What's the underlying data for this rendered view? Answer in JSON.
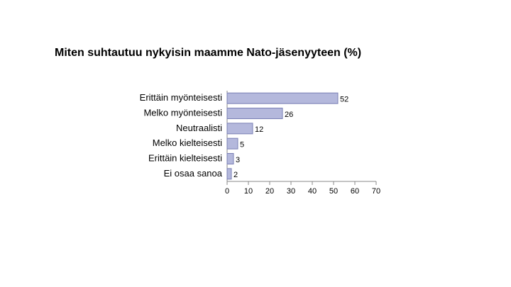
{
  "chart_data": {
    "type": "bar",
    "orientation": "horizontal",
    "title": "Miten suhtautuu nykyisin maamme Nato-jäsenyyteen (%)",
    "categories": [
      "Erittäin myönteisesti",
      "Melko myönteisesti",
      "Neutraalisti",
      "Melko kielteisesti",
      "Erittäin kielteisesti",
      "Ei osaa sanoa"
    ],
    "values": [
      52,
      26,
      12,
      5,
      3,
      2
    ],
    "color": "#b4b8dc",
    "xlim": [
      0,
      70
    ],
    "xticks": [
      0,
      10,
      20,
      30,
      40,
      50,
      60,
      70
    ]
  }
}
